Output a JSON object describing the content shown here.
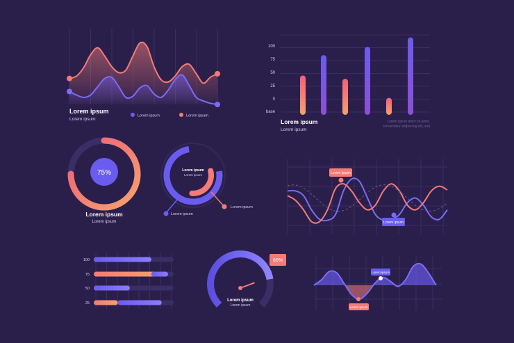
{
  "colors": {
    "background": "#2a1f4b",
    "grid": "#3b2e63",
    "salmon": "#f47b78",
    "purple": "#6b5cf0",
    "text": "#ffffff",
    "muted": "#a79ccd"
  },
  "wave_chart": {
    "title": "Lorem ipsum",
    "subtitle": "Lorem ipsum",
    "legend_purple": "Lorem ipsum",
    "legend_salmon": "Lorem ipsum"
  },
  "bar_chart": {
    "title": "Lorem ipsum",
    "subtitle": "Lorem ipsum",
    "caption_line1": "Lorem ipsum dolor sit amet,",
    "caption_line2": "consectetur adipiscing elit, sed"
  },
  "donut": {
    "center_label": "75%",
    "title": "Lorem ipsum",
    "subtitle": "Lorem ipsum"
  },
  "radial": {
    "center_title": "Lorem ipsum",
    "center_subtitle": "Lorem ipsum",
    "callout_left": "Lorem ipsum",
    "callout_right": "Lorem ipsum"
  },
  "lines_chart": {
    "badge_top": "Lorem ipsum",
    "badge_bottom": "Lorem ipsum"
  },
  "hbars": {
    "title": ""
  },
  "gauge": {
    "badge": "80%",
    "title": "Lorem ipsum",
    "subtitle": "Lorem ipsum"
  },
  "area_chart": {
    "badge_top": "Lorem ipsum",
    "badge_bottom": "Lorem ipsum"
  },
  "chart_data": [
    {
      "type": "line",
      "name": "wave-chart",
      "x": [
        0,
        1,
        2,
        3,
        4,
        5,
        6,
        7,
        8,
        9,
        10,
        11,
        12,
        13,
        14,
        15,
        16,
        17,
        18,
        19,
        20,
        21
      ],
      "series": [
        {
          "color": "#f47b78",
          "values": [
            0.32,
            0.36,
            0.5,
            0.72,
            0.84,
            0.7,
            0.52,
            0.42,
            0.46,
            0.7,
            0.92,
            0.86,
            0.52,
            0.3,
            0.26,
            0.36,
            0.52,
            0.56,
            0.4,
            0.24,
            0.34,
            0.4
          ]
        },
        {
          "color": "#6b5cf0",
          "values": [
            0.1,
            0.04,
            0.0,
            0.04,
            0.18,
            0.32,
            0.34,
            0.18,
            0.0,
            0.02,
            0.16,
            0.2,
            0.06,
            0.0,
            0.12,
            0.3,
            0.38,
            0.2,
            0.0,
            -0.06,
            -0.1,
            -0.12
          ]
        }
      ]
    },
    {
      "type": "bar",
      "name": "bar-chart",
      "y_ticks": [
        "100",
        "75",
        "50",
        "25",
        "0",
        "base"
      ],
      "ylim": [
        0,
        120
      ],
      "values": [
        58,
        88,
        53,
        100,
        25,
        114
      ],
      "colors": [
        "#f47b78",
        "#6b5cf0",
        "#f47b78",
        "#6b5cf0",
        "#f47b78",
        "#6b5cf0"
      ]
    },
    {
      "type": "pie",
      "name": "donut",
      "value": 75
    },
    {
      "type": "pie",
      "name": "radial",
      "values": [
        {
          "color": "#6b5cf0",
          "fraction": 0.75
        },
        {
          "color": "#f47b78",
          "fraction": 0.3
        }
      ]
    },
    {
      "type": "line",
      "name": "lines-chart",
      "x": [
        0,
        1,
        2,
        3,
        4,
        5,
        6,
        7,
        8,
        9,
        10,
        11,
        12,
        13,
        14,
        15,
        16,
        17,
        18,
        19,
        20
      ],
      "series": [
        {
          "color": "#6b5cf0",
          "values": [
            0.7,
            0.7,
            0.6,
            0.3,
            0.1,
            0.08,
            0.2,
            0.7,
            0.95,
            0.9,
            0.55,
            0.2,
            0.08,
            0.1,
            0.2,
            0.45,
            0.55,
            0.4,
            0.15,
            0.1,
            0.3
          ]
        },
        {
          "color": "#f47b78",
          "values": [
            0.6,
            0.5,
            0.3,
            0.05,
            0.05,
            0.3,
            0.75,
            0.85,
            0.7,
            0.45,
            0.3,
            0.4,
            0.7,
            0.85,
            0.7,
            0.4,
            0.3,
            0.45,
            0.7,
            0.8,
            0.72
          ]
        }
      ]
    },
    {
      "type": "bar",
      "name": "horizontal-bars",
      "orientation": "horizontal",
      "categories": [
        "100",
        "75",
        "50",
        "25"
      ],
      "salmon_end": [
        0.72,
        0.82,
        0.45,
        0.3
      ],
      "purple_start": [
        0.0,
        0.72,
        0.0,
        0.3
      ],
      "purple_end": [
        0.72,
        0.93,
        0.45,
        0.85
      ]
    },
    {
      "type": "pie",
      "name": "gauge",
      "value": 80
    },
    {
      "type": "area",
      "name": "area-chart",
      "x": [
        0,
        1,
        2,
        3,
        4,
        5,
        6,
        7,
        8,
        9,
        10,
        11,
        12,
        13,
        14,
        15,
        16
      ],
      "values": [
        0.0,
        0.25,
        0.62,
        0.55,
        0.05,
        -0.45,
        -0.62,
        -0.35,
        0.1,
        0.35,
        0.18,
        -0.05,
        0.25,
        0.85,
        0.95,
        0.55,
        0.0
      ]
    }
  ]
}
